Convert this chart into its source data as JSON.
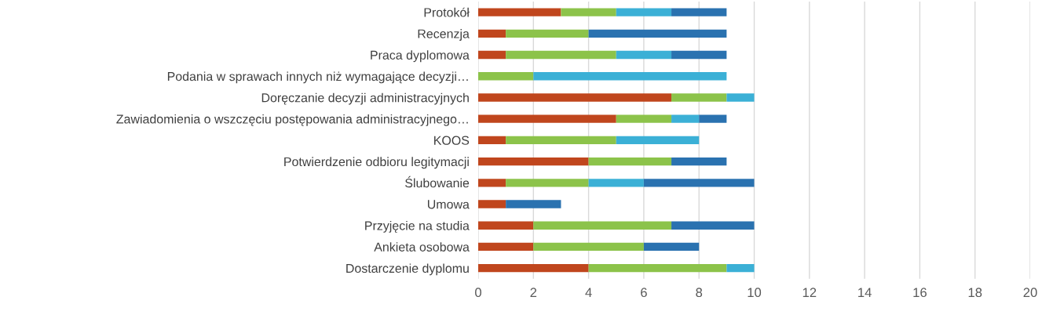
{
  "chart_data": {
    "type": "bar",
    "orientation": "horizontal",
    "stacked": true,
    "categories": [
      "Protokół",
      "Recenzja",
      "Praca dyplomowa",
      "Podania w sprawach innych niż wymagające decyzji…",
      "Doręczanie decyzji administracyjnych",
      "Zawiadomienia o wszczęciu postępowania administracyjnego…",
      "KOOS",
      "Potwierdzenie odbioru legitymacji",
      "Ślubowanie",
      "Umowa",
      "Przyjęcie na studia",
      "Ankieta osobowa",
      "Dostarczenie dyplomu"
    ],
    "series": [
      {
        "color": "#c0461d",
        "values": [
          3,
          1,
          1,
          0,
          7,
          5,
          1,
          4,
          1,
          1,
          2,
          2,
          4
        ]
      },
      {
        "color": "#8cc34a",
        "values": [
          2,
          3,
          4,
          2,
          2,
          2,
          4,
          3,
          3,
          0,
          5,
          4,
          5
        ]
      },
      {
        "color": "#3bb0d6",
        "values": [
          2,
          0,
          2,
          7,
          1,
          1,
          3,
          0,
          2,
          0,
          0,
          0,
          1
        ]
      },
      {
        "color": "#2a72b0",
        "values": [
          2,
          5,
          2,
          0,
          0,
          1,
          0,
          2,
          4,
          2,
          3,
          2,
          0
        ]
      }
    ],
    "xlim": [
      0,
      20
    ],
    "xticks": [
      0,
      2,
      4,
      6,
      8,
      10,
      12,
      14,
      16,
      18,
      20
    ],
    "grid": "x"
  }
}
